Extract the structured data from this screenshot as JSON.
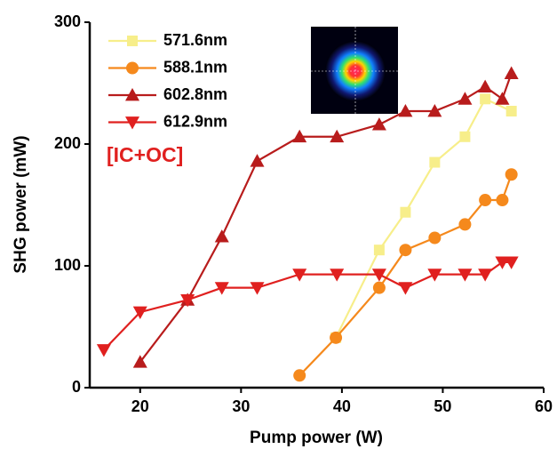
{
  "chart_data": {
    "type": "line",
    "xlabel": "Pump power (W)",
    "ylabel": "SHG power (mW)",
    "annotation": "[IC+OC]",
    "xlim": [
      15,
      60
    ],
    "xticks": [
      20,
      30,
      40,
      50,
      60
    ],
    "ylim": [
      0,
      300
    ],
    "yticks": [
      0,
      100,
      200,
      300
    ],
    "legend": "upper left",
    "series": [
      {
        "name": "571.6nm",
        "color": "#f7ee8a",
        "marker": "square",
        "x": [
          39.4,
          43.7,
          46.3,
          49.2,
          52.2,
          54.2,
          56.8
        ],
        "values": [
          41,
          113,
          144,
          185,
          206,
          237,
          227
        ]
      },
      {
        "name": "588.1nm",
        "color": "#f5891c",
        "marker": "circle",
        "x": [
          35.8,
          39.4,
          43.7,
          46.3,
          49.2,
          52.2,
          54.2,
          55.9,
          56.8
        ],
        "values": [
          10,
          41,
          82,
          113,
          123,
          134,
          154,
          154,
          175
        ]
      },
      {
        "name": "602.8nm",
        "color": "#b81c1c",
        "marker": "triangle-up",
        "x": [
          20,
          24.7,
          28.1,
          31.6,
          35.8,
          39.5,
          43.7,
          46.3,
          49.2,
          52.2,
          54.2,
          55.9,
          56.8
        ],
        "values": [
          21,
          72,
          124,
          186,
          206,
          206,
          216,
          227,
          227,
          237,
          247,
          237,
          258
        ]
      },
      {
        "name": "612.9nm",
        "color": "#e0201f",
        "marker": "triangle-down",
        "x": [
          16.4,
          20,
          24.7,
          28.1,
          31.6,
          35.8,
          39.5,
          43.7,
          46.3,
          49.2,
          52.2,
          54.2,
          55.9,
          56.8
        ],
        "values": [
          31,
          62,
          72,
          82,
          82,
          93,
          93,
          93,
          82,
          93,
          93,
          93,
          103,
          103
        ]
      }
    ]
  }
}
